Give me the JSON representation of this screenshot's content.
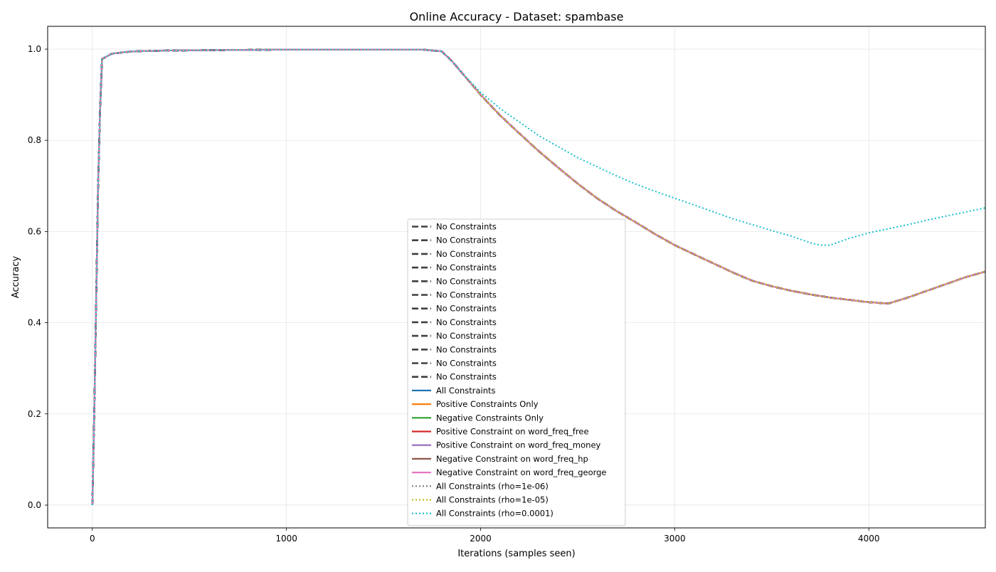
{
  "chart_data": {
    "type": "line",
    "title": "Online Accuracy - Dataset: spambase",
    "xlabel": "Iterations (samples seen)",
    "ylabel": "Accuracy",
    "xlim": [
      -230,
      4600
    ],
    "ylim": [
      -0.05,
      1.05
    ],
    "xticks": [
      0,
      1000,
      2000,
      3000,
      4000
    ],
    "yticks": [
      0.0,
      0.2,
      0.4,
      0.6,
      0.8,
      1.0
    ],
    "xtick_labels": [
      "0",
      "1000",
      "2000",
      "3000",
      "4000"
    ],
    "ytick_labels": [
      "0.0",
      "0.2",
      "0.4",
      "0.6",
      "0.8",
      "1.0"
    ],
    "grid": true,
    "legend_position": "lower-center",
    "series": [
      {
        "name": "No Constraints",
        "color": "#404040",
        "style": "dashed",
        "profile": "base"
      },
      {
        "name": "No Constraints",
        "color": "#404040",
        "style": "dashed",
        "profile": "base"
      },
      {
        "name": "No Constraints",
        "color": "#404040",
        "style": "dashed",
        "profile": "base"
      },
      {
        "name": "No Constraints",
        "color": "#404040",
        "style": "dashed",
        "profile": "base"
      },
      {
        "name": "No Constraints",
        "color": "#404040",
        "style": "dashed",
        "profile": "base"
      },
      {
        "name": "No Constraints",
        "color": "#404040",
        "style": "dashed",
        "profile": "base"
      },
      {
        "name": "No Constraints",
        "color": "#404040",
        "style": "dashed",
        "profile": "base"
      },
      {
        "name": "No Constraints",
        "color": "#404040",
        "style": "dashed",
        "profile": "base"
      },
      {
        "name": "No Constraints",
        "color": "#404040",
        "style": "dashed",
        "profile": "base"
      },
      {
        "name": "No Constraints",
        "color": "#404040",
        "style": "dashed",
        "profile": "base"
      },
      {
        "name": "No Constraints",
        "color": "#404040",
        "style": "dashed",
        "profile": "base"
      },
      {
        "name": "No Constraints",
        "color": "#404040",
        "style": "dashed",
        "profile": "base"
      },
      {
        "name": "All Constraints",
        "color": "#1f77b4",
        "style": "solid",
        "profile": "base"
      },
      {
        "name": "Positive Constraints Only",
        "color": "#ff7f0e",
        "style": "solid",
        "profile": "base"
      },
      {
        "name": "Negative Constraints Only",
        "color": "#2ca02c",
        "style": "solid",
        "profile": "base"
      },
      {
        "name": "Positive Constraint on word_freq_free",
        "color": "#d62728",
        "style": "solid",
        "profile": "base"
      },
      {
        "name": "Positive Constraint on word_freq_money",
        "color": "#9467bd",
        "style": "solid",
        "profile": "base"
      },
      {
        "name": "Negative Constraint on word_freq_hp",
        "color": "#8c564b",
        "style": "solid",
        "profile": "base"
      },
      {
        "name": "Negative Constraint on word_freq_george",
        "color": "#e377c2",
        "style": "solid",
        "profile": "base"
      },
      {
        "name": "All Constraints (rho=1e-06)",
        "color": "#7f7f7f",
        "style": "dotted",
        "profile": "base"
      },
      {
        "name": "All Constraints (rho=1e-05)",
        "color": "#bcbd22",
        "style": "dotted",
        "profile": "base"
      },
      {
        "name": "All Constraints (rho=0.0001)",
        "color": "#17becf",
        "style": "dotted",
        "profile": "rho"
      }
    ],
    "profiles": {
      "base": {
        "x": [
          0,
          10,
          20,
          30,
          40,
          50,
          100,
          200,
          400,
          1000,
          1700,
          1800,
          1850,
          1900,
          2000,
          2100,
          2200,
          2300,
          2400,
          2500,
          2600,
          2700,
          2800,
          2900,
          3000,
          3100,
          3200,
          3300,
          3400,
          3500,
          3600,
          3700,
          3800,
          3900,
          4000,
          4100,
          4200,
          4300,
          4400,
          4500,
          4600
        ],
        "y": [
          0.0,
          0.2,
          0.45,
          0.7,
          0.87,
          0.978,
          0.99,
          0.995,
          0.997,
          0.999,
          0.999,
          0.995,
          0.975,
          0.95,
          0.9,
          0.855,
          0.815,
          0.776,
          0.74,
          0.705,
          0.673,
          0.645,
          0.62,
          0.594,
          0.57,
          0.55,
          0.53,
          0.51,
          0.492,
          0.48,
          0.47,
          0.462,
          0.455,
          0.45,
          0.445,
          0.442,
          0.455,
          0.47,
          0.485,
          0.5,
          0.512
        ]
      },
      "rho": {
        "x": [
          0,
          10,
          20,
          30,
          40,
          50,
          100,
          200,
          400,
          1000,
          1700,
          1800,
          1850,
          1900,
          2000,
          2100,
          2200,
          2300,
          2400,
          2500,
          2600,
          2700,
          2800,
          2900,
          3000,
          3100,
          3200,
          3300,
          3400,
          3500,
          3600,
          3700,
          3750,
          3800,
          3900,
          4000,
          4100,
          4200,
          4300,
          4400,
          4500,
          4600
        ],
        "y": [
          0.0,
          0.2,
          0.45,
          0.7,
          0.87,
          0.978,
          0.99,
          0.995,
          0.997,
          0.999,
          0.999,
          0.995,
          0.975,
          0.95,
          0.905,
          0.87,
          0.84,
          0.81,
          0.786,
          0.762,
          0.742,
          0.722,
          0.704,
          0.688,
          0.673,
          0.658,
          0.643,
          0.628,
          0.615,
          0.602,
          0.59,
          0.575,
          0.57,
          0.57,
          0.585,
          0.597,
          0.606,
          0.615,
          0.625,
          0.634,
          0.643,
          0.652
        ]
      }
    }
  }
}
